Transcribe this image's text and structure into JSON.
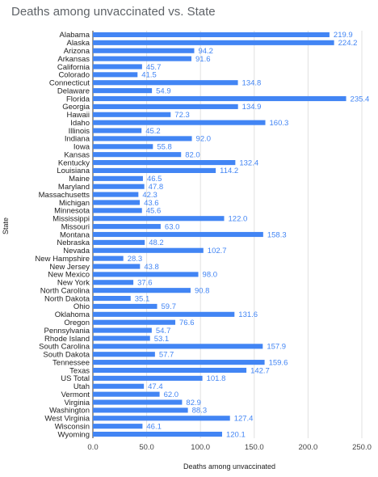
{
  "chart_data": {
    "type": "bar",
    "orientation": "horizontal",
    "title": "Deaths among unvaccinated vs. State",
    "xlabel": "Deaths among unvaccinated",
    "ylabel": "State",
    "xlim": [
      0,
      250
    ],
    "xticks": [
      "0.0",
      "50.0",
      "100.0",
      "150.0",
      "200.0",
      "250.0"
    ],
    "grid": true,
    "bar_color": "#4285f4",
    "categories": [
      "Alabama",
      "Alaska",
      "Arizona",
      "Arkansas",
      "California",
      "Colorado",
      "Connecticut",
      "Delaware",
      "Florida",
      "Georgia",
      "Hawaii",
      "Idaho",
      "Illinois",
      "Indiana",
      "Iowa",
      "Kansas",
      "Kentucky",
      "Louisiana",
      "Maine",
      "Maryland",
      "Massachusetts",
      "Michigan",
      "Minnesota",
      "Mississippi",
      "Missouri",
      "Montana",
      "Nebraska",
      "Nevada",
      "New Hampshire",
      "New Jersey",
      "New Mexico",
      "New York",
      "North Carolina",
      "North Dakota",
      "Ohio",
      "Oklahoma",
      "Oregon",
      "Pennsylvania",
      "Rhode Island",
      "South Carolina",
      "South Dakota",
      "Tennessee",
      "Texas",
      "US Total",
      "Utah",
      "Vermont",
      "Virginia",
      "Washington",
      "West Virginia",
      "Wisconsin",
      "Wyoming"
    ],
    "values": [
      219.9,
      224.2,
      94.2,
      91.6,
      45.7,
      41.5,
      134.8,
      54.9,
      235.4,
      134.9,
      72.3,
      160.3,
      45.2,
      92.0,
      55.8,
      82.0,
      132.4,
      114.2,
      46.5,
      47.8,
      42.3,
      43.6,
      45.6,
      122.0,
      63.0,
      158.3,
      48.2,
      102.7,
      28.3,
      43.8,
      98.0,
      37.6,
      90.8,
      35.1,
      59.7,
      131.6,
      76.6,
      54.7,
      53.1,
      157.9,
      57.7,
      159.6,
      142.7,
      101.8,
      47.4,
      62.0,
      82.9,
      88.3,
      127.4,
      46.1,
      120.1
    ],
    "value_labels": [
      "219.9",
      "224.2",
      "94.2",
      "91.6",
      "45.7",
      "41.5",
      "134.8",
      "54.9",
      "235.4",
      "134.9",
      "72.3",
      "160.3",
      "45.2",
      "92.0",
      "55.8",
      "82.0",
      "132.4",
      "114.2",
      "46.5",
      "47.8",
      "42.3",
      "43.6",
      "45.6",
      "122.0",
      "63.0",
      "158.3",
      "48.2",
      "102.7",
      "28.3",
      "43.8",
      "98.0",
      "37.6",
      "90.8",
      "35.1",
      "59.7",
      "131.6",
      "76.6",
      "54.7",
      "53.1",
      "157.9",
      "57.7",
      "159.6",
      "142.7",
      "101.8",
      "47.4",
      "62.0",
      "82.9",
      "88.3",
      "127.4",
      "46.1",
      "120.1"
    ]
  }
}
